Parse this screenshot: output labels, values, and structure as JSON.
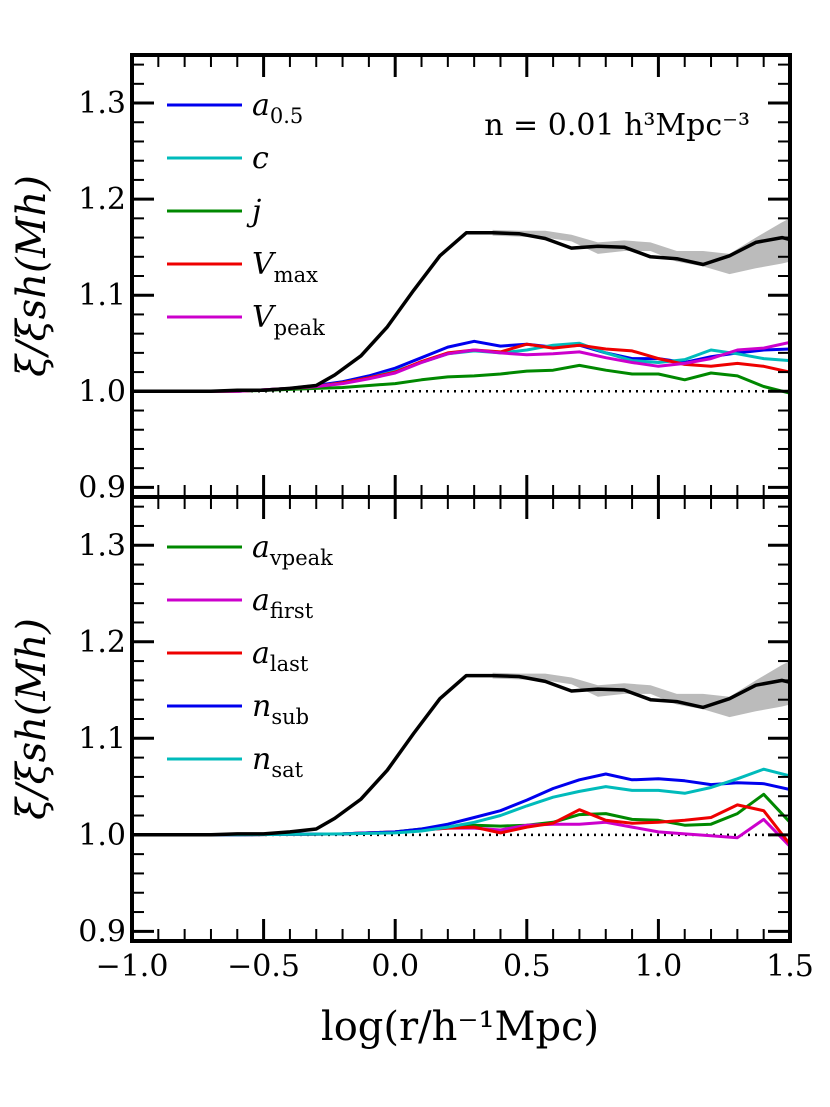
{
  "chart_data": [
    {
      "type": "line",
      "panel": "top",
      "ylabel": "ξ/ξsh(Mh)",
      "xlabel": "",
      "xlim": [
        -1.0,
        1.5
      ],
      "ylim": [
        0.89,
        1.35
      ],
      "yticks": [
        "0.9",
        "1.0",
        "1.1",
        "1.2",
        "1.3"
      ],
      "reference_line": 1.0,
      "annotation": "n = 0.01 h³Mpc⁻³",
      "legend_position": "upper-left",
      "baseline_band": {
        "x": [
          0.37,
          0.47,
          0.57,
          0.67,
          0.77,
          0.87,
          0.97,
          1.07,
          1.17,
          1.27,
          1.37,
          1.47,
          1.5
        ],
        "lower": [
          1.162,
          1.161,
          1.16,
          1.156,
          1.143,
          1.146,
          1.146,
          1.135,
          1.13,
          1.122,
          1.128,
          1.133,
          1.135
        ],
        "upper": [
          1.168,
          1.167,
          1.167,
          1.163,
          1.155,
          1.157,
          1.155,
          1.146,
          1.146,
          1.143,
          1.16,
          1.176,
          1.18
        ]
      },
      "baseline": {
        "color": "#000000",
        "x": [
          -1.0,
          -0.9,
          -0.8,
          -0.7,
          -0.6,
          -0.5,
          -0.4,
          -0.3,
          -0.23,
          -0.13,
          -0.03,
          0.07,
          0.17,
          0.27,
          0.37,
          0.47,
          0.57,
          0.67,
          0.77,
          0.87,
          0.97,
          1.07,
          1.17,
          1.27,
          1.37,
          1.47,
          1.5
        ],
        "y": [
          1.0,
          1.0,
          1.0,
          1.0,
          1.001,
          1.001,
          1.003,
          1.006,
          1.017,
          1.037,
          1.067,
          1.105,
          1.141,
          1.165,
          1.165,
          1.164,
          1.159,
          1.149,
          1.151,
          1.15,
          1.14,
          1.138,
          1.132,
          1.141,
          1.155,
          1.16,
          1.158
        ]
      },
      "series": [
        {
          "name": "a",
          "sub": "0.5",
          "color": "#0000ee",
          "x": [
            -1.0,
            -0.8,
            -0.6,
            -0.4,
            -0.3,
            -0.2,
            -0.1,
            0.0,
            0.1,
            0.2,
            0.3,
            0.4,
            0.5,
            0.6,
            0.7,
            0.8,
            0.9,
            1.0,
            1.1,
            1.2,
            1.3,
            1.4,
            1.5
          ],
          "values": [
            1.0,
            1.0,
            1.0,
            1.003,
            1.006,
            1.01,
            1.016,
            1.024,
            1.035,
            1.046,
            1.052,
            1.047,
            1.049,
            1.046,
            1.048,
            1.04,
            1.034,
            1.034,
            1.03,
            1.036,
            1.04,
            1.043,
            1.044
          ]
        },
        {
          "name": "c",
          "sub": "",
          "color": "#00bbbb",
          "x": [
            -1.0,
            -0.8,
            -0.6,
            -0.4,
            -0.3,
            -0.2,
            -0.1,
            0.0,
            0.1,
            0.2,
            0.3,
            0.4,
            0.5,
            0.6,
            0.7,
            0.8,
            0.9,
            1.0,
            1.1,
            1.2,
            1.3,
            1.4,
            1.5
          ],
          "values": [
            1.0,
            1.0,
            1.0,
            1.003,
            1.005,
            1.009,
            1.014,
            1.021,
            1.03,
            1.039,
            1.042,
            1.04,
            1.043,
            1.048,
            1.05,
            1.04,
            1.032,
            1.03,
            1.033,
            1.043,
            1.039,
            1.034,
            1.032
          ]
        },
        {
          "name": "j",
          "sub": "",
          "color": "#008800",
          "x": [
            -1.0,
            -0.8,
            -0.6,
            -0.4,
            -0.3,
            -0.2,
            -0.1,
            0.0,
            0.1,
            0.2,
            0.3,
            0.4,
            0.5,
            0.6,
            0.7,
            0.8,
            0.9,
            1.0,
            1.1,
            1.2,
            1.3,
            1.4,
            1.5
          ],
          "values": [
            1.0,
            1.0,
            1.0,
            1.002,
            1.003,
            1.004,
            1.006,
            1.008,
            1.012,
            1.015,
            1.016,
            1.018,
            1.021,
            1.022,
            1.027,
            1.022,
            1.018,
            1.018,
            1.012,
            1.019,
            1.016,
            1.005,
            0.998
          ]
        },
        {
          "name": "V",
          "sub": "max",
          "color": "#ee0000",
          "x": [
            -1.0,
            -0.8,
            -0.6,
            -0.4,
            -0.3,
            -0.2,
            -0.1,
            0.0,
            0.1,
            0.2,
            0.3,
            0.4,
            0.5,
            0.6,
            0.7,
            0.8,
            0.9,
            1.0,
            1.1,
            1.2,
            1.3,
            1.4,
            1.5
          ],
          "values": [
            1.0,
            1.0,
            1.0,
            1.003,
            1.005,
            1.009,
            1.014,
            1.02,
            1.031,
            1.04,
            1.043,
            1.041,
            1.049,
            1.045,
            1.048,
            1.044,
            1.042,
            1.034,
            1.028,
            1.026,
            1.029,
            1.026,
            1.02
          ]
        },
        {
          "name": "V",
          "sub": "peak",
          "color": "#cc00cc",
          "x": [
            -1.0,
            -0.8,
            -0.6,
            -0.4,
            -0.3,
            -0.2,
            -0.1,
            0.0,
            0.1,
            0.2,
            0.3,
            0.4,
            0.5,
            0.6,
            0.7,
            0.8,
            0.9,
            1.0,
            1.1,
            1.2,
            1.3,
            1.4,
            1.5
          ],
          "values": [
            1.0,
            1.0,
            1.0,
            1.003,
            1.005,
            1.008,
            1.013,
            1.019,
            1.03,
            1.039,
            1.043,
            1.04,
            1.038,
            1.039,
            1.041,
            1.035,
            1.03,
            1.026,
            1.029,
            1.034,
            1.043,
            1.045,
            1.051
          ]
        }
      ]
    },
    {
      "type": "line",
      "panel": "bottom",
      "ylabel": "ξ/ξsh(Mh)",
      "xlabel": "log(r/h⁻¹Mpc)",
      "xlim": [
        -1.0,
        1.5
      ],
      "ylim": [
        0.89,
        1.35
      ],
      "yticks": [
        "0.9",
        "1.0",
        "1.1",
        "1.2",
        "1.3"
      ],
      "xticks": [
        "−1.0",
        "−0.5",
        "0.0",
        "0.5",
        "1.0",
        "1.5"
      ],
      "reference_line": 1.0,
      "legend_position": "upper-left",
      "baseline_band": {
        "x": [
          0.37,
          0.47,
          0.57,
          0.67,
          0.77,
          0.87,
          0.97,
          1.07,
          1.17,
          1.27,
          1.37,
          1.47,
          1.5
        ],
        "lower": [
          1.162,
          1.161,
          1.16,
          1.156,
          1.143,
          1.146,
          1.146,
          1.135,
          1.13,
          1.122,
          1.128,
          1.133,
          1.135
        ],
        "upper": [
          1.168,
          1.167,
          1.167,
          1.163,
          1.155,
          1.157,
          1.155,
          1.146,
          1.146,
          1.143,
          1.16,
          1.176,
          1.18
        ]
      },
      "baseline": {
        "color": "#000000",
        "x": [
          -1.0,
          -0.9,
          -0.8,
          -0.7,
          -0.6,
          -0.5,
          -0.4,
          -0.3,
          -0.23,
          -0.13,
          -0.03,
          0.07,
          0.17,
          0.27,
          0.37,
          0.47,
          0.57,
          0.67,
          0.77,
          0.87,
          0.97,
          1.07,
          1.17,
          1.27,
          1.37,
          1.47,
          1.5
        ],
        "y": [
          1.0,
          1.0,
          1.0,
          1.0,
          1.001,
          1.001,
          1.003,
          1.006,
          1.017,
          1.037,
          1.067,
          1.105,
          1.141,
          1.165,
          1.165,
          1.164,
          1.159,
          1.149,
          1.151,
          1.15,
          1.14,
          1.138,
          1.132,
          1.141,
          1.155,
          1.16,
          1.158
        ]
      },
      "series": [
        {
          "name": "a",
          "sub": "vpeak",
          "color": "#008800",
          "x": [
            -1.0,
            -0.6,
            -0.2,
            0.0,
            0.1,
            0.2,
            0.3,
            0.4,
            0.5,
            0.6,
            0.7,
            0.8,
            0.9,
            1.0,
            1.1,
            1.2,
            1.3,
            1.4,
            1.5
          ],
          "values": [
            1.0,
            1.0,
            1.001,
            1.003,
            1.006,
            1.008,
            1.01,
            1.009,
            1.01,
            1.013,
            1.021,
            1.022,
            1.016,
            1.015,
            1.01,
            1.011,
            1.022,
            1.042,
            1.013
          ]
        },
        {
          "name": "a",
          "sub": "first",
          "color": "#cc00cc",
          "x": [
            -1.0,
            -0.6,
            -0.2,
            0.0,
            0.1,
            0.2,
            0.3,
            0.4,
            0.5,
            0.6,
            0.7,
            0.8,
            0.9,
            1.0,
            1.1,
            1.2,
            1.3,
            1.4,
            1.5
          ],
          "values": [
            1.0,
            1.0,
            1.001,
            1.003,
            1.005,
            1.007,
            1.007,
            1.005,
            1.01,
            1.011,
            1.011,
            1.013,
            1.008,
            1.003,
            1.001,
            0.999,
            0.997,
            1.016,
            0.988
          ]
        },
        {
          "name": "a",
          "sub": "last",
          "color": "#ee0000",
          "x": [
            -1.0,
            -0.6,
            -0.2,
            0.0,
            0.1,
            0.2,
            0.3,
            0.4,
            0.5,
            0.6,
            0.7,
            0.8,
            0.9,
            1.0,
            1.1,
            1.2,
            1.3,
            1.4,
            1.5
          ],
          "values": [
            1.0,
            1.0,
            1.001,
            1.003,
            1.005,
            1.007,
            1.008,
            1.002,
            1.008,
            1.012,
            1.026,
            1.015,
            1.012,
            1.013,
            1.015,
            1.018,
            1.031,
            1.025,
            0.99
          ]
        },
        {
          "name": "n",
          "sub": "sub",
          "color": "#0000ee",
          "x": [
            -1.0,
            -0.6,
            -0.2,
            0.0,
            0.1,
            0.2,
            0.3,
            0.4,
            0.5,
            0.6,
            0.7,
            0.8,
            0.9,
            1.0,
            1.1,
            1.2,
            1.3,
            1.4,
            1.5
          ],
          "values": [
            1.0,
            1.0,
            1.001,
            1.003,
            1.006,
            1.011,
            1.018,
            1.025,
            1.036,
            1.048,
            1.057,
            1.063,
            1.057,
            1.058,
            1.056,
            1.052,
            1.054,
            1.053,
            1.047
          ]
        },
        {
          "name": "n",
          "sub": "sat",
          "color": "#00bbbb",
          "x": [
            -1.0,
            -0.6,
            -0.2,
            0.0,
            0.1,
            0.2,
            0.3,
            0.4,
            0.5,
            0.6,
            0.7,
            0.8,
            0.9,
            1.0,
            1.1,
            1.2,
            1.3,
            1.4,
            1.5
          ],
          "values": [
            1.0,
            1.0,
            1.001,
            1.002,
            1.004,
            1.008,
            1.013,
            1.02,
            1.03,
            1.039,
            1.045,
            1.05,
            1.046,
            1.046,
            1.043,
            1.049,
            1.058,
            1.068,
            1.061
          ]
        }
      ]
    }
  ]
}
